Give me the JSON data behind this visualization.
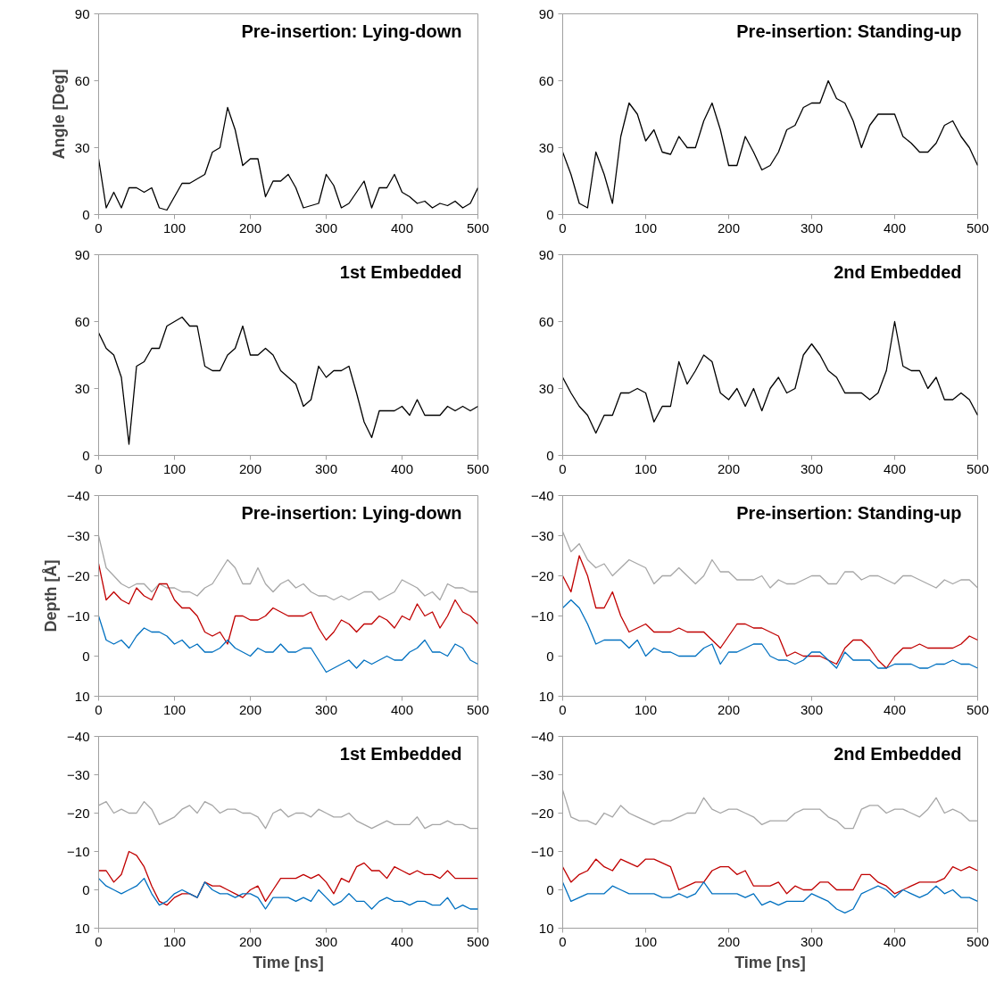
{
  "chart_data": [
    {
      "type": "line",
      "title": "Pre-insertion: Lying-down",
      "ylabel": "Angle [Deg]",
      "xlim": [
        0,
        500
      ],
      "xticks": [
        0,
        100,
        200,
        300,
        400,
        500
      ],
      "ylim": [
        0,
        90
      ],
      "yticks": [
        0,
        30,
        60,
        90
      ],
      "grid": false,
      "x": [
        0,
        10,
        20,
        30,
        40,
        50,
        60,
        70,
        80,
        90,
        100,
        110,
        120,
        130,
        140,
        150,
        160,
        170,
        180,
        190,
        200,
        210,
        220,
        230,
        240,
        250,
        260,
        270,
        280,
        290,
        300,
        310,
        320,
        330,
        340,
        350,
        360,
        370,
        380,
        390,
        400,
        410,
        420,
        430,
        440,
        450,
        460,
        470,
        480,
        490,
        500
      ],
      "series": [
        {
          "color": "#000000",
          "values": [
            25,
            3,
            10,
            3,
            12,
            12,
            10,
            12,
            3,
            2,
            8,
            14,
            14,
            16,
            18,
            28,
            30,
            48,
            38,
            22,
            25,
            25,
            8,
            15,
            15,
            18,
            12,
            3,
            4,
            5,
            18,
            13,
            3,
            5,
            10,
            15,
            3,
            12,
            12,
            18,
            10,
            8,
            5,
            6,
            3,
            5,
            4,
            6,
            3,
            5,
            12
          ]
        }
      ]
    },
    {
      "type": "line",
      "title": "Pre-insertion: Standing-up",
      "xlim": [
        0,
        500
      ],
      "xticks": [
        0,
        100,
        200,
        300,
        400,
        500
      ],
      "ylim": [
        0,
        90
      ],
      "yticks": [
        0,
        30,
        60,
        90
      ],
      "grid": false,
      "x": [
        0,
        10,
        20,
        30,
        40,
        50,
        60,
        70,
        80,
        90,
        100,
        110,
        120,
        130,
        140,
        150,
        160,
        170,
        180,
        190,
        200,
        210,
        220,
        230,
        240,
        250,
        260,
        270,
        280,
        290,
        300,
        310,
        320,
        330,
        340,
        350,
        360,
        370,
        380,
        390,
        400,
        410,
        420,
        430,
        440,
        450,
        460,
        470,
        480,
        490,
        500
      ],
      "series": [
        {
          "color": "#000000",
          "values": [
            28,
            18,
            5,
            3,
            28,
            18,
            5,
            35,
            50,
            45,
            33,
            38,
            28,
            27,
            35,
            30,
            30,
            42,
            50,
            38,
            22,
            22,
            35,
            28,
            20,
            22,
            28,
            38,
            40,
            48,
            50,
            50,
            60,
            52,
            50,
            42,
            30,
            40,
            45,
            45,
            45,
            35,
            32,
            28,
            28,
            32,
            40,
            42,
            35,
            30,
            22
          ]
        }
      ]
    },
    {
      "type": "line",
      "title": "1st Embedded",
      "xlim": [
        0,
        500
      ],
      "xticks": [
        0,
        100,
        200,
        300,
        400,
        500
      ],
      "ylim": [
        0,
        90
      ],
      "yticks": [
        0,
        30,
        60,
        90
      ],
      "grid": false,
      "x": [
        0,
        10,
        20,
        30,
        40,
        50,
        60,
        70,
        80,
        90,
        100,
        110,
        120,
        130,
        140,
        150,
        160,
        170,
        180,
        190,
        200,
        210,
        220,
        230,
        240,
        250,
        260,
        270,
        280,
        290,
        300,
        310,
        320,
        330,
        340,
        350,
        360,
        370,
        380,
        390,
        400,
        410,
        420,
        430,
        440,
        450,
        460,
        470,
        480,
        490,
        500
      ],
      "series": [
        {
          "color": "#000000",
          "values": [
            55,
            48,
            45,
            35,
            5,
            40,
            42,
            48,
            48,
            58,
            60,
            62,
            58,
            58,
            40,
            38,
            38,
            45,
            48,
            58,
            45,
            45,
            48,
            45,
            38,
            35,
            32,
            22,
            25,
            40,
            35,
            38,
            38,
            40,
            28,
            15,
            8,
            20,
            20,
            20,
            22,
            18,
            25,
            18,
            18,
            18,
            22,
            20,
            22,
            20,
            22
          ]
        }
      ]
    },
    {
      "type": "line",
      "title": "2nd Embedded",
      "xlim": [
        0,
        500
      ],
      "xticks": [
        0,
        100,
        200,
        300,
        400,
        500
      ],
      "ylim": [
        0,
        90
      ],
      "yticks": [
        0,
        30,
        60,
        90
      ],
      "grid": false,
      "x": [
        0,
        10,
        20,
        30,
        40,
        50,
        60,
        70,
        80,
        90,
        100,
        110,
        120,
        130,
        140,
        150,
        160,
        170,
        180,
        190,
        200,
        210,
        220,
        230,
        240,
        250,
        260,
        270,
        280,
        290,
        300,
        310,
        320,
        330,
        340,
        350,
        360,
        370,
        380,
        390,
        400,
        410,
        420,
        430,
        440,
        450,
        460,
        470,
        480,
        490,
        500
      ],
      "series": [
        {
          "color": "#000000",
          "values": [
            35,
            28,
            22,
            18,
            10,
            18,
            18,
            28,
            28,
            30,
            28,
            15,
            22,
            22,
            42,
            32,
            38,
            45,
            42,
            28,
            25,
            30,
            22,
            30,
            20,
            30,
            35,
            28,
            30,
            45,
            50,
            45,
            38,
            35,
            28,
            28,
            28,
            25,
            28,
            38,
            60,
            40,
            38,
            38,
            30,
            35,
            25,
            25,
            28,
            25,
            18
          ]
        }
      ]
    },
    {
      "type": "line",
      "title": "Pre-insertion: Lying-down",
      "ylabel": "Depth [Å]",
      "xlim": [
        0,
        500
      ],
      "xticks": [
        0,
        100,
        200,
        300,
        400,
        500
      ],
      "ylim": [
        10,
        -40
      ],
      "yticks": [
        -40,
        -30,
        -20,
        -10,
        0,
        10
      ],
      "grid": false,
      "x": [
        0,
        10,
        20,
        30,
        40,
        50,
        60,
        70,
        80,
        90,
        100,
        110,
        120,
        130,
        140,
        150,
        160,
        170,
        180,
        190,
        200,
        210,
        220,
        230,
        240,
        250,
        260,
        270,
        280,
        290,
        300,
        310,
        320,
        330,
        340,
        350,
        360,
        370,
        380,
        390,
        400,
        410,
        420,
        430,
        440,
        450,
        460,
        470,
        480,
        490,
        500
      ],
      "series": [
        {
          "color": "#a6a6a6",
          "values": [
            -30,
            -22,
            -20,
            -18,
            -17,
            -18,
            -18,
            -16,
            -18,
            -17,
            -17,
            -16,
            -16,
            -15,
            -17,
            -18,
            -21,
            -24,
            -22,
            -18,
            -18,
            -22,
            -18,
            -16,
            -18,
            -19,
            -17,
            -18,
            -16,
            -15,
            -15,
            -14,
            -15,
            -14,
            -15,
            -16,
            -16,
            -14,
            -15,
            -16,
            -19,
            -18,
            -17,
            -15,
            -16,
            -14,
            -18,
            -17,
            -17,
            -16,
            -16
          ]
        },
        {
          "color": "#c00000",
          "values": [
            -23,
            -14,
            -16,
            -14,
            -13,
            -17,
            -15,
            -14,
            -18,
            -18,
            -14,
            -12,
            -12,
            -10,
            -6,
            -5,
            -6,
            -3,
            -10,
            -10,
            -9,
            -9,
            -10,
            -12,
            -11,
            -10,
            -10,
            -10,
            -11,
            -7,
            -4,
            -6,
            -9,
            -8,
            -6,
            -8,
            -8,
            -10,
            -9,
            -7,
            -10,
            -9,
            -13,
            -10,
            -11,
            -7,
            -10,
            -14,
            -11,
            -10,
            -8
          ]
        },
        {
          "color": "#0070c0",
          "values": [
            -10,
            -4,
            -3,
            -4,
            -2,
            -5,
            -7,
            -6,
            -6,
            -5,
            -3,
            -4,
            -2,
            -3,
            -1,
            -1,
            -2,
            -4,
            -2,
            -1,
            0,
            -2,
            -1,
            -1,
            -3,
            -1,
            -1,
            -2,
            -2,
            1,
            4,
            3,
            2,
            1,
            3,
            1,
            2,
            1,
            0,
            1,
            1,
            -1,
            -2,
            -4,
            -1,
            -1,
            0,
            -3,
            -2,
            1,
            2
          ]
        }
      ]
    },
    {
      "type": "line",
      "title": "Pre-insertion: Standing-up",
      "xlim": [
        0,
        500
      ],
      "xticks": [
        0,
        100,
        200,
        300,
        400,
        500
      ],
      "ylim": [
        10,
        -40
      ],
      "yticks": [
        -40,
        -30,
        -20,
        -10,
        0,
        10
      ],
      "grid": false,
      "x": [
        0,
        10,
        20,
        30,
        40,
        50,
        60,
        70,
        80,
        90,
        100,
        110,
        120,
        130,
        140,
        150,
        160,
        170,
        180,
        190,
        200,
        210,
        220,
        230,
        240,
        250,
        260,
        270,
        280,
        290,
        300,
        310,
        320,
        330,
        340,
        350,
        360,
        370,
        380,
        390,
        400,
        410,
        420,
        430,
        440,
        450,
        460,
        470,
        480,
        490,
        500
      ],
      "series": [
        {
          "color": "#a6a6a6",
          "values": [
            -31,
            -26,
            -28,
            -24,
            -22,
            -23,
            -20,
            -22,
            -24,
            -23,
            -22,
            -18,
            -20,
            -20,
            -22,
            -20,
            -18,
            -20,
            -24,
            -21,
            -21,
            -19,
            -19,
            -19,
            -20,
            -17,
            -19,
            -18,
            -18,
            -19,
            -20,
            -20,
            -18,
            -18,
            -21,
            -21,
            -19,
            -20,
            -20,
            -19,
            -18,
            -20,
            -20,
            -19,
            -18,
            -17,
            -19,
            -18,
            -19,
            -19,
            -17
          ]
        },
        {
          "color": "#c00000",
          "values": [
            -20,
            -16,
            -25,
            -20,
            -12,
            -12,
            -16,
            -10,
            -6,
            -7,
            -8,
            -6,
            -6,
            -6,
            -7,
            -6,
            -6,
            -6,
            -4,
            -2,
            -5,
            -8,
            -8,
            -7,
            -7,
            -6,
            -5,
            0,
            -1,
            0,
            0,
            0,
            1,
            2,
            -2,
            -4,
            -4,
            -2,
            1,
            3,
            0,
            -2,
            -2,
            -3,
            -2,
            -2,
            -2,
            -2,
            -3,
            -5,
            -4
          ]
        },
        {
          "color": "#0070c0",
          "values": [
            -12,
            -14,
            -12,
            -8,
            -3,
            -4,
            -4,
            -4,
            -2,
            -4,
            0,
            -2,
            -1,
            -1,
            0,
            0,
            0,
            -2,
            -3,
            2,
            -1,
            -1,
            -2,
            -3,
            -3,
            0,
            1,
            1,
            2,
            1,
            -1,
            -1,
            1,
            3,
            -1,
            1,
            1,
            1,
            3,
            3,
            2,
            2,
            2,
            3,
            3,
            2,
            2,
            1,
            2,
            2,
            3
          ]
        }
      ]
    },
    {
      "type": "line",
      "title": "1st Embedded",
      "xlabel": "Time [ns]",
      "xlim": [
        0,
        500
      ],
      "xticks": [
        0,
        100,
        200,
        300,
        400,
        500
      ],
      "ylim": [
        10,
        -40
      ],
      "yticks": [
        -40,
        -30,
        -20,
        -10,
        0,
        10
      ],
      "grid": false,
      "x": [
        0,
        10,
        20,
        30,
        40,
        50,
        60,
        70,
        80,
        90,
        100,
        110,
        120,
        130,
        140,
        150,
        160,
        170,
        180,
        190,
        200,
        210,
        220,
        230,
        240,
        250,
        260,
        270,
        280,
        290,
        300,
        310,
        320,
        330,
        340,
        350,
        360,
        370,
        380,
        390,
        400,
        410,
        420,
        430,
        440,
        450,
        460,
        470,
        480,
        490,
        500
      ],
      "series": [
        {
          "color": "#a6a6a6",
          "values": [
            -22,
            -23,
            -20,
            -21,
            -20,
            -20,
            -23,
            -21,
            -17,
            -18,
            -19,
            -21,
            -22,
            -20,
            -23,
            -22,
            -20,
            -21,
            -21,
            -20,
            -20,
            -19,
            -16,
            -20,
            -21,
            -19,
            -20,
            -20,
            -19,
            -21,
            -20,
            -19,
            -19,
            -20,
            -18,
            -17,
            -16,
            -17,
            -18,
            -17,
            -17,
            -17,
            -19,
            -16,
            -17,
            -17,
            -18,
            -17,
            -17,
            -16,
            -16
          ]
        },
        {
          "color": "#c00000",
          "values": [
            -5,
            -5,
            -2,
            -4,
            -10,
            -9,
            -6,
            -1,
            3,
            4,
            2,
            1,
            1,
            2,
            -2,
            -1,
            -1,
            0,
            1,
            2,
            0,
            -1,
            3,
            0,
            -3,
            -3,
            -3,
            -4,
            -3,
            -4,
            -2,
            1,
            -3,
            -2,
            -6,
            -7,
            -5,
            -5,
            -3,
            -6,
            -5,
            -4,
            -5,
            -4,
            -4,
            -3,
            -5,
            -3,
            -3,
            -3,
            -3
          ]
        },
        {
          "color": "#0070c0",
          "values": [
            -3,
            -1,
            0,
            1,
            0,
            -1,
            -3,
            1,
            4,
            3,
            1,
            0,
            1,
            2,
            -2,
            0,
            1,
            1,
            2,
            1,
            1,
            2,
            5,
            2,
            2,
            2,
            3,
            2,
            3,
            0,
            2,
            4,
            3,
            1,
            3,
            3,
            5,
            3,
            2,
            3,
            3,
            4,
            3,
            3,
            4,
            4,
            2,
            5,
            4,
            5,
            5
          ]
        }
      ]
    },
    {
      "type": "line",
      "title": "2nd Embedded",
      "xlabel": "Time [ns]",
      "xlim": [
        0,
        500
      ],
      "xticks": [
        0,
        100,
        200,
        300,
        400,
        500
      ],
      "ylim": [
        10,
        -40
      ],
      "yticks": [
        -40,
        -30,
        -20,
        -10,
        0,
        10
      ],
      "grid": false,
      "x": [
        0,
        10,
        20,
        30,
        40,
        50,
        60,
        70,
        80,
        90,
        100,
        110,
        120,
        130,
        140,
        150,
        160,
        170,
        180,
        190,
        200,
        210,
        220,
        230,
        240,
        250,
        260,
        270,
        280,
        290,
        300,
        310,
        320,
        330,
        340,
        350,
        360,
        370,
        380,
        390,
        400,
        410,
        420,
        430,
        440,
        450,
        460,
        470,
        480,
        490,
        500
      ],
      "series": [
        {
          "color": "#a6a6a6",
          "values": [
            -26,
            -19,
            -18,
            -18,
            -17,
            -20,
            -19,
            -22,
            -20,
            -19,
            -18,
            -17,
            -18,
            -18,
            -19,
            -20,
            -20,
            -24,
            -21,
            -20,
            -21,
            -21,
            -20,
            -19,
            -17,
            -18,
            -18,
            -18,
            -20,
            -21,
            -21,
            -21,
            -19,
            -18,
            -16,
            -16,
            -21,
            -22,
            -22,
            -20,
            -21,
            -21,
            -20,
            -19,
            -21,
            -24,
            -20,
            -21,
            -20,
            -18,
            -18
          ]
        },
        {
          "color": "#c00000",
          "values": [
            -6,
            -2,
            -4,
            -5,
            -8,
            -6,
            -5,
            -8,
            -7,
            -6,
            -8,
            -8,
            -7,
            -6,
            0,
            -1,
            -2,
            -2,
            -5,
            -6,
            -6,
            -4,
            -5,
            -1,
            -1,
            -1,
            -2,
            1,
            -1,
            0,
            0,
            -2,
            -2,
            0,
            0,
            0,
            -4,
            -4,
            -2,
            -1,
            1,
            0,
            -1,
            -2,
            -2,
            -2,
            -3,
            -6,
            -5,
            -6,
            -5
          ]
        },
        {
          "color": "#0070c0",
          "values": [
            -2,
            3,
            2,
            1,
            1,
            1,
            -1,
            0,
            1,
            1,
            1,
            1,
            2,
            2,
            1,
            2,
            1,
            -2,
            1,
            1,
            1,
            1,
            2,
            1,
            4,
            3,
            4,
            3,
            3,
            3,
            1,
            2,
            3,
            5,
            6,
            5,
            1,
            0,
            -1,
            0,
            2,
            0,
            1,
            2,
            1,
            -1,
            1,
            0,
            2,
            2,
            3
          ]
        }
      ]
    }
  ]
}
